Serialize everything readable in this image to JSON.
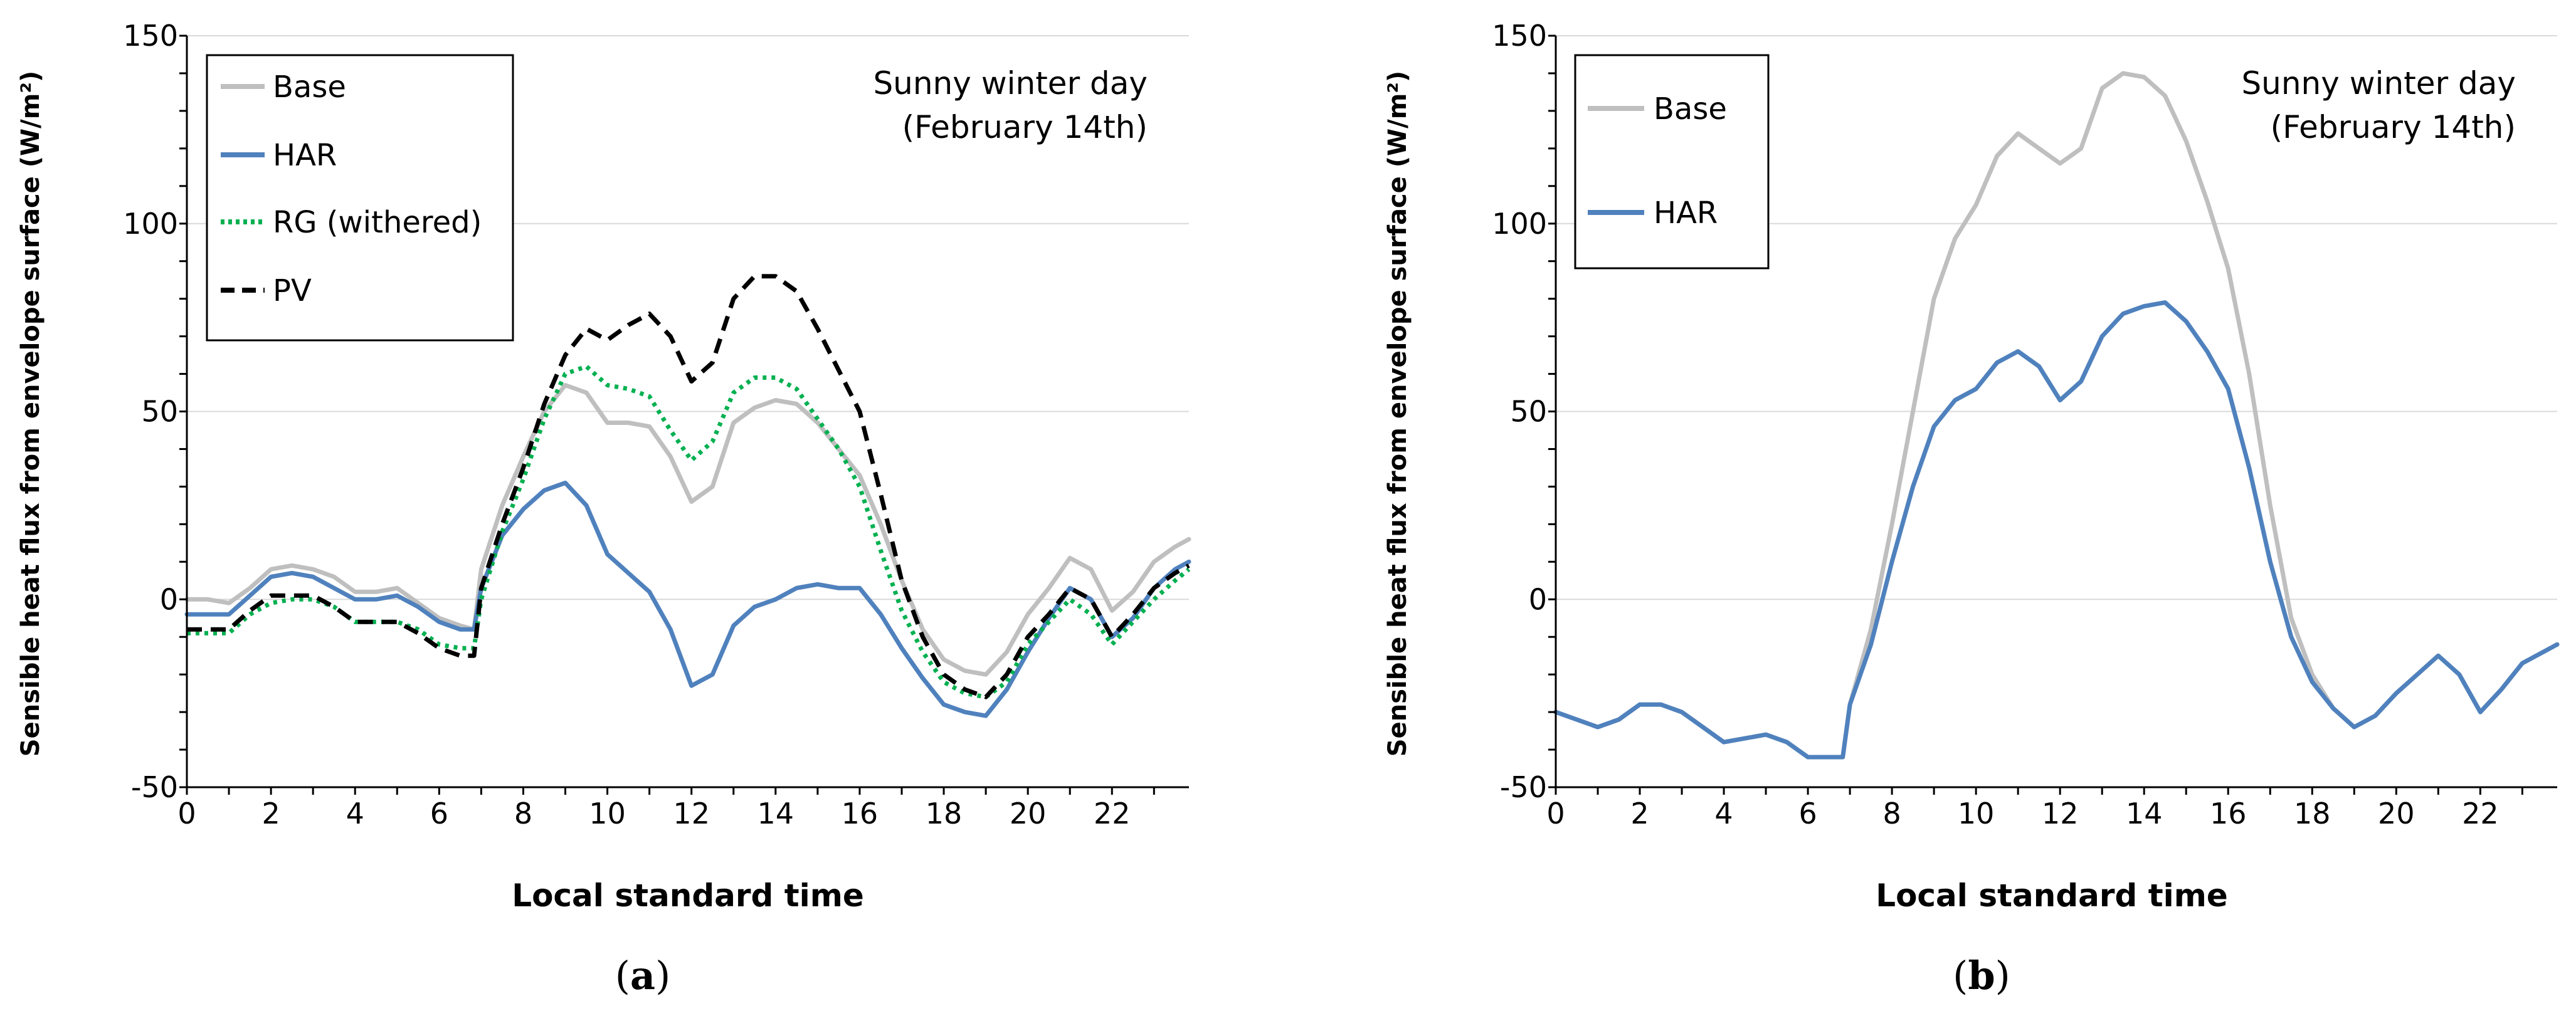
{
  "colors": {
    "Base": "#bfbfbf",
    "HAR": "#4f81bd",
    "RG (withered)": "#00b050",
    "PV": "#000000",
    "grid": "#d9d9d9"
  },
  "chart_data": [
    {
      "type": "line",
      "panel_label": {
        "open": "(",
        "letter": "a",
        "close": ")"
      },
      "annotation": [
        "Sunny winter day",
        "(February 14th)"
      ],
      "xlabel": "Local standard time",
      "ylabel": "Sensible heat flux from envelope surface (W/m²)",
      "xlim": [
        0,
        23.83
      ],
      "ylim": [
        -50,
        150
      ],
      "xticks": [
        0,
        2,
        4,
        6,
        8,
        10,
        12,
        14,
        16,
        18,
        20,
        22
      ],
      "yticks": [
        -50,
        0,
        50,
        100,
        150
      ],
      "legend_position": "top-left",
      "x": [
        0,
        0.5,
        1,
        1.5,
        2,
        2.5,
        3,
        3.5,
        4,
        4.5,
        5,
        5.5,
        6,
        6.5,
        6.83,
        7,
        7.5,
        8,
        8.5,
        9,
        9.5,
        10,
        10.5,
        11,
        11.5,
        12,
        12.5,
        13,
        13.5,
        14,
        14.5,
        15,
        15.5,
        16,
        16.5,
        17,
        17.5,
        18,
        18.5,
        19,
        19.5,
        20,
        20.5,
        21,
        21.5,
        22,
        22.5,
        23,
        23.5,
        23.83
      ],
      "series": [
        {
          "name": "Base",
          "style": "solid",
          "values": [
            0,
            0,
            -1,
            3,
            8,
            9,
            8,
            6,
            2,
            2,
            3,
            -1,
            -5,
            -7,
            -8,
            8,
            25,
            38,
            50,
            57,
            55,
            47,
            47,
            46,
            38,
            26,
            30,
            47,
            51,
            53,
            52,
            47,
            40,
            33,
            20,
            5,
            -8,
            -16,
            -19,
            -20,
            -14,
            -4,
            3,
            11,
            8,
            -3,
            2,
            10,
            14,
            16
          ]
        },
        {
          "name": "HAR",
          "style": "solid",
          "values": [
            -4,
            -4,
            -4,
            1,
            6,
            7,
            6,
            3,
            0,
            0,
            1,
            -2,
            -6,
            -8,
            -8,
            3,
            17,
            24,
            29,
            31,
            25,
            12,
            7,
            2,
            -8,
            -23,
            -20,
            -7,
            -2,
            0,
            3,
            4,
            3,
            3,
            -4,
            -13,
            -21,
            -28,
            -30,
            -31,
            -24,
            -14,
            -5,
            3,
            0,
            -10,
            -5,
            3,
            8,
            10
          ]
        },
        {
          "name": "RG (withered)",
          "style": "dotted",
          "values": [
            -9,
            -9,
            -9,
            -4,
            -1,
            0,
            0,
            -2,
            -6,
            -6,
            -6,
            -8,
            -12,
            -13,
            -13,
            0,
            18,
            32,
            48,
            60,
            62,
            57,
            56,
            54,
            45,
            37,
            42,
            55,
            59,
            59,
            56,
            48,
            40,
            30,
            13,
            -3,
            -14,
            -22,
            -25,
            -26,
            -22,
            -12,
            -6,
            0,
            -4,
            -12,
            -6,
            0,
            5,
            8
          ]
        },
        {
          "name": "PV",
          "style": "dashed",
          "values": [
            -8,
            -8,
            -8,
            -3,
            1,
            1,
            1,
            -2,
            -6,
            -6,
            -6,
            -9,
            -13,
            -15,
            -15,
            3,
            20,
            35,
            52,
            65,
            72,
            69,
            73,
            76,
            70,
            58,
            63,
            80,
            86,
            86,
            82,
            72,
            61,
            50,
            28,
            5,
            -10,
            -20,
            -24,
            -26,
            -20,
            -10,
            -4,
            3,
            0,
            -10,
            -4,
            3,
            7,
            9
          ]
        }
      ]
    },
    {
      "type": "line",
      "panel_label": {
        "open": "(",
        "letter": "b",
        "close": ")"
      },
      "annotation": [
        "Sunny winter day",
        "(February 14th)"
      ],
      "xlabel": "Local standard time",
      "ylabel": "Sensible heat flux from envelope surface (W/m²)",
      "xlim": [
        0,
        23.83
      ],
      "ylim": [
        -50,
        150
      ],
      "xticks": [
        0,
        2,
        4,
        6,
        8,
        10,
        12,
        14,
        16,
        18,
        20,
        22
      ],
      "yticks": [
        -50,
        0,
        50,
        100,
        150
      ],
      "legend_position": "top-left",
      "x": [
        0,
        0.5,
        1,
        1.5,
        2,
        2.5,
        3,
        3.5,
        4,
        4.5,
        5,
        5.5,
        6,
        6.5,
        6.83,
        7,
        7.5,
        8,
        8.5,
        9,
        9.5,
        10,
        10.5,
        11,
        11.5,
        12,
        12.5,
        13,
        13.5,
        14,
        14.5,
        15,
        15.5,
        16,
        16.5,
        17,
        17.5,
        18,
        18.5,
        19,
        19.5,
        20,
        20.5,
        21,
        21.5,
        22,
        22.5,
        23,
        23.5,
        23.83
      ],
      "series": [
        {
          "name": "Base",
          "style": "solid",
          "values": [
            -30,
            -32,
            -34,
            -32,
            -28,
            -28,
            -30,
            -34,
            -38,
            -37,
            -36,
            -38,
            -42,
            -42,
            -42,
            -28,
            -8,
            20,
            50,
            80,
            96,
            105,
            118,
            124,
            120,
            116,
            120,
            136,
            140,
            139,
            134,
            122,
            106,
            88,
            60,
            25,
            -5,
            -20,
            -29,
            -34,
            -31,
            -25,
            -20,
            -15,
            -20,
            -30,
            -24,
            -17,
            -14,
            -12
          ]
        },
        {
          "name": "HAR",
          "style": "solid",
          "values": [
            -30,
            -32,
            -34,
            -32,
            -28,
            -28,
            -30,
            -34,
            -38,
            -37,
            -36,
            -38,
            -42,
            -42,
            -42,
            -28,
            -12,
            10,
            30,
            46,
            53,
            56,
            63,
            66,
            62,
            53,
            58,
            70,
            76,
            78,
            79,
            74,
            66,
            56,
            35,
            10,
            -10,
            -22,
            -29,
            -34,
            -31,
            -25,
            -20,
            -15,
            -20,
            -30,
            -24,
            -17,
            -14,
            -12
          ]
        }
      ],
      "label_positions": "inline"
    }
  ]
}
